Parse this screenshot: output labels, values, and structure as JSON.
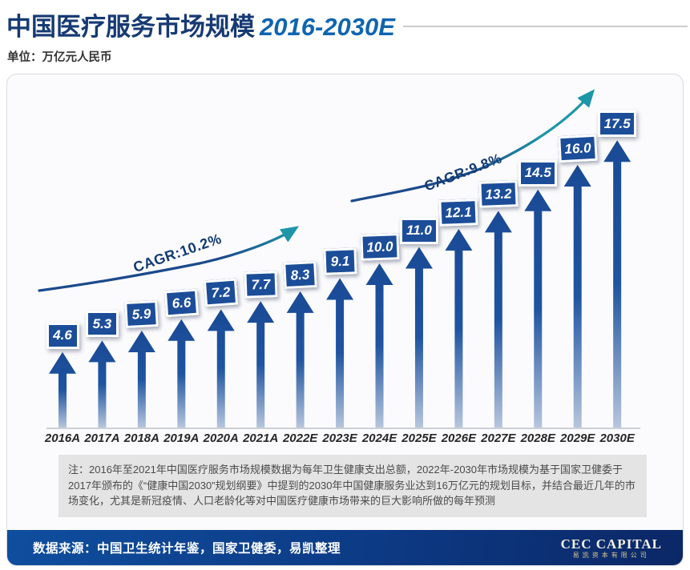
{
  "header": {
    "title_cn": "中国医疗服务市场规模",
    "title_range": "2016-2030E",
    "subtitle": "单位：万亿元人民币"
  },
  "chart_data": {
    "type": "bar",
    "title": "中国医疗服务市场规模 2016-2030E",
    "ylabel": "万亿元人民币",
    "ylim": [
      0,
      18
    ],
    "grid": false,
    "categories": [
      "2016A",
      "2017A",
      "2018A",
      "2019A",
      "2020A",
      "2021A",
      "2022E",
      "2023E",
      "2024E",
      "2025E",
      "2026E",
      "2027E",
      "2028E",
      "2029E",
      "2030E"
    ],
    "values": [
      4.6,
      5.3,
      5.9,
      6.6,
      7.2,
      7.7,
      8.3,
      9.1,
      10.0,
      11.0,
      12.1,
      13.2,
      14.5,
      16.0,
      17.5
    ],
    "annotations": [
      {
        "label": "CAGR:10.2%"
      },
      {
        "label": "CAGR:9.8%"
      }
    ],
    "bar_color": "#1c4d99",
    "arrow_accent_color": "#1d96a8"
  },
  "note": "注：2016年至2021年中国医疗服务市场规模数据为每年卫生健康支出总额，2022年-2030年市场规模为基于国家卫健委于2017年颁布的《“健康中国2030”规划纲要》中提到的2030年中国健康服务业达到16万亿元的规划目标，并结合最近几年的市场变化，尤其是新冠疫情、人口老龄化等对中国医疗健康市场带来的巨大影响所做的每年预测",
  "footer": {
    "source": "数据来源：中国卫生统计年鉴，国家卫健委，易凯整理",
    "logo_main": "CEC CAPITAL",
    "logo_sub": "易凯资本有限公司"
  },
  "colors": {
    "title_cn": "#163a73",
    "title_range": "#0f65af",
    "bar_blue": "#1c4d99",
    "swoosh_navy": "#1b4a8c",
    "swoosh_teal": "#1d96a8",
    "footer_left": "#0f4e9e",
    "footer_right": "#0b2766",
    "note_bg": "#e4e4e5"
  }
}
